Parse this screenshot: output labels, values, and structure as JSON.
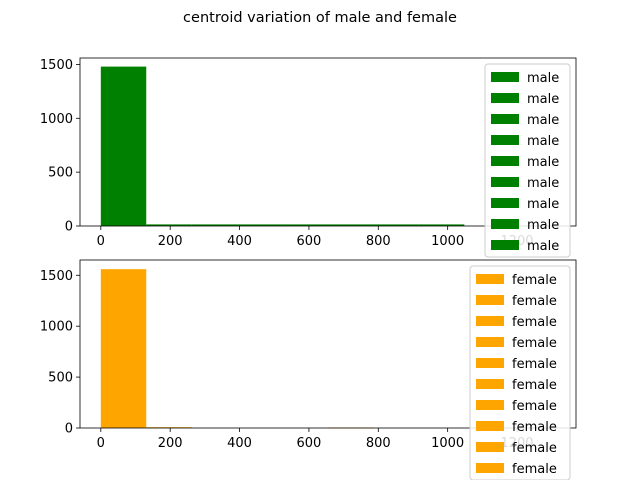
{
  "chart_data": {
    "title": "centroid variation of male and female",
    "subplots": [
      {
        "type": "bar",
        "subtitle": "",
        "xlabel": "",
        "ylabel": "",
        "color": "#008000",
        "xlim": [
          -60,
          1370
        ],
        "ylim": [
          0,
          1560
        ],
        "xticks": [
          "0",
          "200",
          "400",
          "600",
          "800",
          "1000",
          "1200"
        ],
        "yticks": [
          "0",
          "500",
          "1000",
          "1500"
        ],
        "bins": [
          {
            "x0": 0,
            "x1": 131,
            "value": 1480
          },
          {
            "x0": 131,
            "x1": 262,
            "value": 15
          },
          {
            "x0": 262,
            "x1": 393,
            "value": 15
          },
          {
            "x0": 393,
            "x1": 524,
            "value": 15
          },
          {
            "x0": 524,
            "x1": 655,
            "value": 15
          },
          {
            "x0": 655,
            "x1": 786,
            "value": 15
          },
          {
            "x0": 786,
            "x1": 917,
            "value": 15
          },
          {
            "x0": 917,
            "x1": 1048,
            "value": 15
          },
          {
            "x0": 1048,
            "x1": 1179,
            "value": 0
          },
          {
            "x0": 1179,
            "x1": 1310,
            "value": 0
          }
        ],
        "legend": {
          "placement": "upper right",
          "entries": [
            "male",
            "male",
            "male",
            "male",
            "male",
            "male",
            "male",
            "male",
            "male"
          ]
        }
      },
      {
        "type": "bar",
        "subtitle": "",
        "xlabel": "",
        "ylabel": "",
        "color": "#FFA500",
        "xlim": [
          -60,
          1370
        ],
        "ylim": [
          0,
          1650
        ],
        "xticks": [
          "0",
          "200",
          "400",
          "600",
          "800",
          "1000",
          "1200"
        ],
        "yticks": [
          "0",
          "500",
          "1000",
          "1500"
        ],
        "bins": [
          {
            "x0": 0,
            "x1": 131,
            "value": 1560
          },
          {
            "x0": 131,
            "x1": 262,
            "value": 8
          },
          {
            "x0": 262,
            "x1": 393,
            "value": 0
          },
          {
            "x0": 393,
            "x1": 524,
            "value": 0
          },
          {
            "x0": 524,
            "x1": 655,
            "value": 0
          },
          {
            "x0": 655,
            "x1": 786,
            "value": 5
          },
          {
            "x0": 786,
            "x1": 917,
            "value": 0
          },
          {
            "x0": 917,
            "x1": 1048,
            "value": 0
          },
          {
            "x0": 1048,
            "x1": 1179,
            "value": 0
          },
          {
            "x0": 1179,
            "x1": 1310,
            "value": 0
          }
        ],
        "legend": {
          "placement": "upper right",
          "entries": [
            "female",
            "female",
            "female",
            "female",
            "female",
            "female",
            "female",
            "female",
            "female",
            "female"
          ]
        }
      }
    ]
  }
}
